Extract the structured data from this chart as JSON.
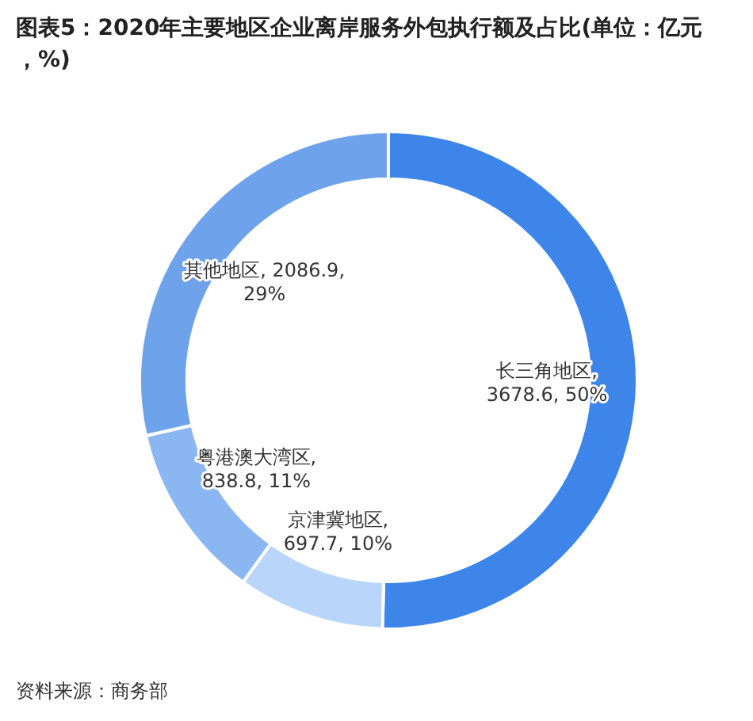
{
  "chart_data": {
    "type": "donut",
    "title": "图表5：2020年主要地区企业离岸服务外包执行额及占比(单位：亿元，%)",
    "categories": [
      "长三角地区",
      "京津冀地区",
      "粤港澳大湾区",
      "其他地区"
    ],
    "values": [
      3678.6,
      697.7,
      838.8,
      2086.9
    ],
    "colors": [
      "#3d85e8",
      "#b9d6fa",
      "#8ab6f2",
      "#6ea2ea"
    ],
    "value_labels": [
      ", 3678.6, 50%",
      ", 697.7, 10%",
      ", 838.8, 11%",
      ", 2086.9, 29%"
    ],
    "annotations": [
      "资料来源：商务部"
    ]
  }
}
